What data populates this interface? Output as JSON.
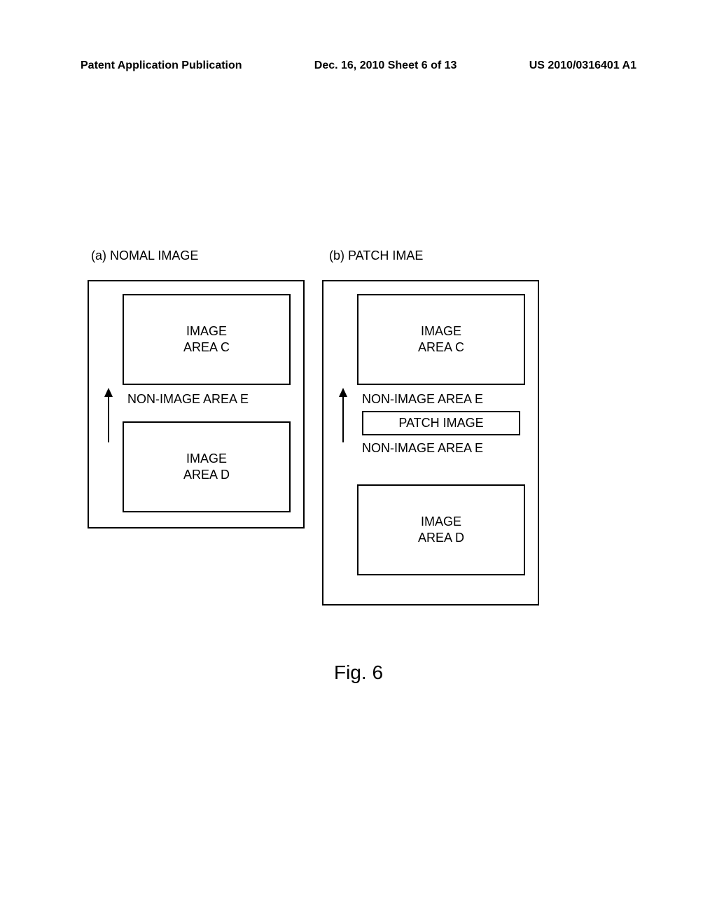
{
  "header": {
    "left": "Patent Application Publication",
    "center": "Dec. 16, 2010  Sheet 6 of 13",
    "right": "US 2010/0316401 A1"
  },
  "labels": {
    "a": "(a) NOMAL IMAGE",
    "b": "(b) PATCH IMAE"
  },
  "diagram_a": {
    "image_area_c": "IMAGE\nAREA C",
    "non_image_e": "NON-IMAGE AREA E",
    "image_area_d": "IMAGE\nAREA D",
    "outer_border_color": "#000000",
    "inner_border_color": "#000000"
  },
  "diagram_b": {
    "image_area_c": "IMAGE\nAREA C",
    "non_image_e1": "NON-IMAGE AREA E",
    "patch_image": "PATCH IMAGE",
    "non_image_e2": "NON-IMAGE AREA E",
    "image_area_d": "IMAGE\nAREA D",
    "outer_border_color": "#000000",
    "inner_border_color": "#000000"
  },
  "figure_label": "Fig. 6",
  "colors": {
    "background": "#ffffff",
    "text": "#000000",
    "border": "#000000"
  },
  "arrow": {
    "stroke": "#000000",
    "stroke_width": 2
  }
}
